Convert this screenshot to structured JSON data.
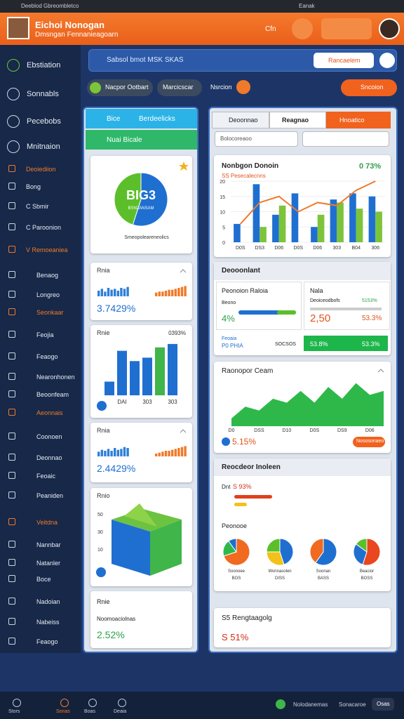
{
  "browser": {
    "tab": "Deeblod Gbreombletco",
    "user": "Eanak"
  },
  "header": {
    "title": "Eichoi Nonogan",
    "subtitle": "Dmsngan Fennanieagoarn",
    "button": "Cfn"
  },
  "sidebar": {
    "items": [
      {
        "label": "Ebstiation"
      },
      {
        "label": "Sonnabls"
      },
      {
        "label": "Pecebobs"
      },
      {
        "label": "Mnitnaion"
      },
      {
        "label": "Deoiediion",
        "color": "#f07a2a"
      },
      {
        "label": "Bong"
      },
      {
        "label": "C Sbmir"
      },
      {
        "label": "C Paroonion"
      },
      {
        "label": "V Remoeaniea",
        "color": "#f07a2a"
      },
      {
        "label": "Benaog"
      },
      {
        "label": "Longreo"
      },
      {
        "label": "Seonkaar",
        "color": "#f07a2a"
      },
      {
        "label": "Feojia"
      },
      {
        "label": "Feaogo"
      },
      {
        "label": "Nearonhonen"
      },
      {
        "label": "Beoonfeam"
      },
      {
        "label": "Aeonnais",
        "color": "#f07a2a"
      },
      {
        "label": "Coonoen"
      },
      {
        "label": "Deonnao"
      },
      {
        "label": "Feoaic"
      },
      {
        "label": "Peaniden"
      },
      {
        "label": "Veitdna",
        "color": "#f07a2a"
      },
      {
        "label": "Nannbar"
      },
      {
        "label": "Natanler"
      },
      {
        "label": "Boce"
      },
      {
        "label": "Nadoian"
      },
      {
        "label": "Nabeiss"
      },
      {
        "label": "Feaogo"
      }
    ]
  },
  "search": {
    "placeholder": "Sabsol bmot MSK SKAS",
    "dropdown": "Rancaelem"
  },
  "filters": {
    "chips": [
      "Nacpor Ootbart",
      "Marcicscar",
      "Nsrcion"
    ],
    "action": "Sncoion"
  },
  "left_panel": {
    "tabs": [
      "Bice",
      "Berdeelicks"
    ],
    "section": "Nuai Bicale",
    "pie_card": {
      "label": "BIG3",
      "sublabel": "BSN2ANSAM",
      "caption": "Smeopoleareneolics",
      "values": [
        55,
        45
      ],
      "colors": [
        "#1f6fd1",
        "#5cbf2a"
      ]
    },
    "trend_card_1": {
      "title": "Rnia",
      "value": "3.7429%",
      "ylim": [
        0,
        12
      ],
      "series": [
        {
          "color": "#2f7fd8",
          "values": [
            6,
            8,
            5,
            9,
            7,
            8,
            6,
            9,
            8,
            10
          ]
        },
        {
          "color": "#f07a2a",
          "values": [
            4,
            5,
            5,
            6,
            7,
            7,
            8,
            9,
            10,
            11
          ]
        }
      ]
    },
    "bar_card": {
      "title": "Rnie",
      "value": "0393%",
      "ylim": [
        0,
        16
      ],
      "categories": [
        null,
        "DAI",
        null,
        "303",
        null,
        "303"
      ],
      "values": [
        4,
        13,
        10,
        11,
        14,
        15
      ],
      "colors": [
        "#1f6fd1",
        "#1f6fd1",
        "#1f6fd1",
        "#1f6fd1",
        "#3fb54a",
        "#1f6fd1"
      ]
    },
    "trend_card_2": {
      "title": "Rnia",
      "value": "2.4429%",
      "ylim": [
        0,
        12
      ],
      "series": [
        {
          "color": "#2f7fd8",
          "values": [
            5,
            7,
            6,
            8,
            6,
            9,
            7,
            8,
            10,
            9
          ]
        },
        {
          "color": "#f07a2a",
          "values": [
            3,
            4,
            5,
            6,
            6,
            7,
            8,
            9,
            10,
            11
          ]
        }
      ]
    },
    "cube_card": {
      "title": "Rnio",
      "axis_labels": [
        "50",
        "30",
        "10"
      ]
    },
    "summary_card": {
      "title": "Rnie",
      "subtitle": "Noomoaciolnas",
      "value": "2.52%"
    }
  },
  "right_panel": {
    "tabs": [
      "Deoonnao",
      "Reagnao",
      "Hnoatico"
    ],
    "input": "Bolocoreaoo",
    "overview": {
      "title": "Nonbgon Donoin",
      "value": "0 73%",
      "legend": "SS Pesecalecnns",
      "ylim": [
        0,
        20
      ],
      "yticks": [
        0,
        5,
        10,
        15,
        20
      ],
      "categories": [
        "D0S",
        "DS3",
        "D06",
        "D0S",
        "D06",
        "303",
        "B04",
        "306"
      ],
      "series": [
        {
          "type": "bar",
          "color": "#1f6fd1",
          "values": [
            6,
            19,
            9,
            16,
            5,
            14,
            16,
            15
          ]
        },
        {
          "type": "bar",
          "color": "#7cc43a",
          "values": [
            0,
            5,
            12,
            0,
            9,
            13,
            11,
            10
          ]
        },
        {
          "type": "line",
          "color": "#f07a2a",
          "values": [
            6,
            13,
            15,
            10,
            13,
            12,
            17,
            20
          ]
        }
      ]
    },
    "details": {
      "title": "Deooonlant",
      "left": {
        "title": "Peonoion Raloia",
        "label": "Beono",
        "value": "4%"
      },
      "right": {
        "title": "Nala",
        "label": "Deoiceodbofs",
        "rate": "5153%",
        "value": "2,50",
        "change": "53.3%"
      },
      "footer": {
        "label": "Feoaia",
        "name": "P0 PHIA",
        "code": "SOCSOS",
        "value": "53.8%",
        "change": "53.3%"
      }
    },
    "area": {
      "title": "Raonopor Ceam",
      "value": "5.15%",
      "button": "Nososonaeo",
      "ylim": [
        0,
        12
      ],
      "color": "#2fb84a",
      "categories": [
        "D0",
        null,
        "DSS",
        null,
        "D10",
        null,
        "D0S",
        null,
        "DS9",
        null,
        "D06",
        null
      ],
      "values": [
        2,
        5,
        4,
        7,
        6,
        9,
        6,
        10,
        7,
        11,
        8,
        9
      ]
    },
    "breakdown": {
      "title": "Reocdeor Inoleen",
      "label": "Dnt",
      "value": "S 93%",
      "section": "Peonooe",
      "pies": [
        {
          "name": "Soonoee",
          "label": "BOS",
          "values": [
            70,
            20,
            10
          ],
          "colors": [
            "#f06a1f",
            "#2fb84a",
            "#1f6fd1"
          ]
        },
        {
          "name": "Wonnasolen",
          "label": "DISS",
          "values": [
            45,
            30,
            25
          ],
          "colors": [
            "#1f6fd1",
            "#f2c21a",
            "#5cbf2a"
          ]
        },
        {
          "name": "Soonan",
          "label": "BASS",
          "values": [
            60,
            40
          ],
          "colors": [
            "#1f6fd1",
            "#f06a1f"
          ]
        },
        {
          "name": "Beacior",
          "label": "BOSS",
          "values": [
            55,
            30,
            15
          ],
          "colors": [
            "#e8471f",
            "#1f6fd1",
            "#5cbf2a"
          ]
        }
      ]
    },
    "footer_card": {
      "title": "S5 Rengtaagolg",
      "value": "S 51%"
    }
  },
  "bottom_nav": {
    "items": [
      "Stors",
      "Sonas",
      "Boas",
      "Deaia"
    ],
    "status": "Nolodanemas",
    "link": "Sonacaroe",
    "button": "Osas"
  }
}
